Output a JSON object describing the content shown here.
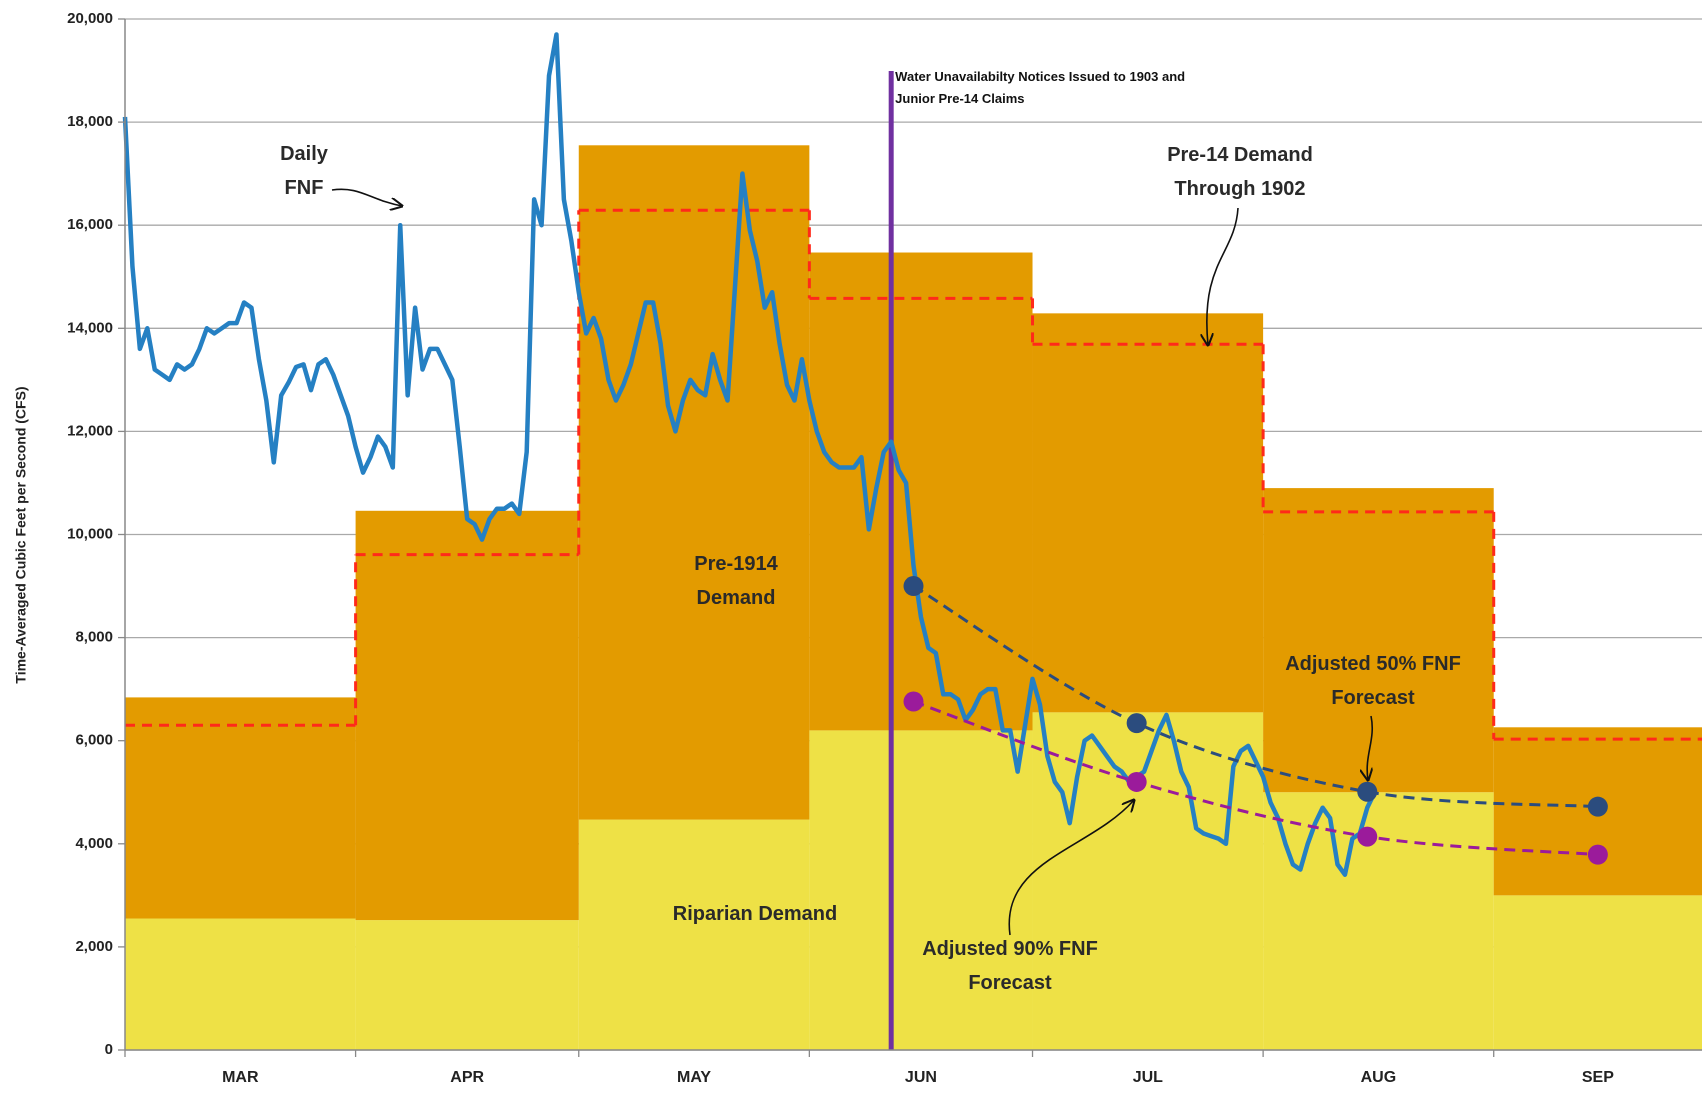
{
  "chart_data": {
    "type": "combo",
    "ylabel": "Time-Averaged Cubic Feet per Second (CFS)",
    "xlim": [
      0,
      212
    ],
    "xticks": [
      {
        "value": 0,
        "label": "MAR"
      },
      {
        "value": 31,
        "label": "APR"
      },
      {
        "value": 61,
        "label": "MAY"
      },
      {
        "value": 92,
        "label": "JUN"
      },
      {
        "value": 122,
        "label": "JUL"
      },
      {
        "value": 153,
        "label": "AUG"
      },
      {
        "value": 184,
        "label": "SEP"
      }
    ],
    "ylim": [
      0,
      20000
    ],
    "yticks": [
      0,
      {
        "value": 2000,
        "label": "2,000"
      },
      {
        "value": 4000,
        "label": "4,000"
      },
      {
        "value": 6000,
        "label": "6,000"
      },
      {
        "value": 8000,
        "label": "8,000"
      },
      {
        "value": 10000,
        "label": "10,000"
      },
      {
        "value": 12000,
        "label": "12,000"
      },
      {
        "value": 14000,
        "label": "14,000"
      },
      {
        "value": 16000,
        "label": "16,000"
      },
      {
        "value": 18000,
        "label": "18,000"
      },
      {
        "value": 20000,
        "label": "20,000"
      }
    ],
    "grid": true,
    "series": [
      {
        "name": "Riparian Demand",
        "style": "step-area",
        "color": "#EEE146",
        "values": [
          2550,
          2520,
          4470,
          6200,
          6550,
          5000,
          3000
        ]
      },
      {
        "name": "Pre-1914 Demand",
        "style": "step-area",
        "stacked": true,
        "color": "#E39B00",
        "values": [
          4290,
          7940,
          13080,
          9270,
          7740,
          5900,
          3260
        ]
      },
      {
        "name": "Pre-14 Demand Through 1902",
        "style": "step-line",
        "color": "#FF2A1A",
        "values": [
          6300,
          9610,
          16290,
          14580,
          13690,
          10440,
          6030
        ]
      },
      {
        "name": "Daily FNF",
        "style": "line",
        "color": "#2580C3",
        "x": [
          0,
          1,
          2,
          3,
          4,
          5,
          6,
          7,
          8,
          9,
          10,
          11,
          12,
          13,
          14,
          15,
          16,
          17,
          18,
          19,
          20,
          21,
          22,
          23,
          24,
          25,
          26,
          27,
          28,
          29,
          30,
          31,
          32,
          33,
          34,
          35,
          36,
          37,
          38,
          39,
          40,
          41,
          42,
          43,
          44,
          45,
          46,
          47,
          48,
          49,
          50,
          51,
          52,
          53,
          54,
          55,
          56,
          57,
          58,
          59,
          60,
          61,
          62,
          63,
          64,
          65,
          66,
          67,
          68,
          69,
          70,
          71,
          72,
          73,
          74,
          75,
          76,
          77,
          78,
          79,
          80,
          81,
          82,
          83,
          84,
          85,
          86,
          87,
          88,
          89,
          90,
          91,
          92,
          93,
          94,
          95,
          96,
          97,
          98,
          99,
          100,
          101,
          102,
          103,
          104,
          105,
          106,
          107,
          108,
          109,
          110,
          111,
          112,
          113,
          114,
          115,
          116,
          117,
          118,
          119,
          120,
          121,
          122,
          123,
          124,
          125,
          126,
          127,
          128,
          129,
          130,
          131,
          132,
          133,
          134,
          135,
          136,
          137,
          138,
          139,
          140,
          141,
          142,
          143,
          144,
          145,
          146,
          147,
          148,
          149,
          150,
          151,
          152,
          153,
          154,
          155,
          156,
          157,
          158,
          159,
          160,
          161,
          162,
          163,
          164,
          165,
          166,
          167,
          168
        ],
        "values": [
          18100,
          15200,
          13600,
          14000,
          13200,
          13100,
          13000,
          13300,
          13200,
          13300,
          13600,
          14000,
          13900,
          14000,
          14100,
          14100,
          14500,
          14400,
          13400,
          12600,
          11400,
          12700,
          12950,
          13250,
          13300,
          12800,
          13300,
          13400,
          13100,
          12700,
          12300,
          11700,
          11200,
          11500,
          11900,
          11700,
          11300,
          16000,
          12700,
          14400,
          13200,
          13600,
          13600,
          13300,
          13000,
          11700,
          10300,
          10200,
          9900,
          10300,
          10500,
          10500,
          10600,
          10400,
          11600,
          16500,
          16000,
          18900,
          19700,
          16500,
          15700,
          14700,
          13900,
          14200,
          13800,
          13000,
          12600,
          12900,
          13300,
          13900,
          14500,
          14500,
          13700,
          12500,
          12000,
          12600,
          13000,
          12800,
          12700,
          13500,
          13000,
          12600,
          14800,
          17000,
          15900,
          15300,
          14400,
          14700,
          13700,
          12900,
          12600,
          13400,
          12600,
          12000,
          11600,
          11400,
          11300,
          11300,
          11300,
          11500,
          10100,
          10900,
          11600,
          11800,
          11250,
          11000,
          9400,
          8400,
          7800,
          7700,
          6900,
          6900,
          6800,
          6400,
          6600,
          6900,
          7000,
          7000,
          6200,
          6200,
          5400,
          6300,
          7200,
          6700,
          5700,
          5200,
          5000,
          4400,
          5300,
          6000,
          6100,
          5900,
          5700,
          5500,
          5400,
          5200,
          5300,
          5400,
          5800,
          6200,
          6500,
          6000,
          5400,
          5100,
          4300,
          4200,
          4150,
          4100,
          4000,
          5500,
          5800,
          5900,
          5600,
          5300,
          4800,
          4500,
          4000,
          3600,
          3500,
          4000,
          4400,
          4700,
          4500,
          3600,
          3400,
          4100,
          4200,
          4700,
          5000
        ]
      },
      {
        "name": "Adjusted 50% FNF Forecast",
        "style": "dashed-markers",
        "color": "#2B4C7E",
        "x": [
          106,
          136,
          167,
          198
        ],
        "values": [
          9000,
          6340,
          5010,
          4720
        ]
      },
      {
        "name": "Adjusted 90% FNF Forecast",
        "style": "dashed-markers",
        "color": "#9B1B9B",
        "x": [
          106,
          136,
          167,
          198
        ],
        "values": [
          6760,
          5200,
          4140,
          3790
        ]
      }
    ],
    "vline": {
      "x": 103,
      "color": "#7030A0",
      "text": "Water Unavailabilty Notices Issued to 1903 and Junior Pre-14 Claims"
    }
  }
}
